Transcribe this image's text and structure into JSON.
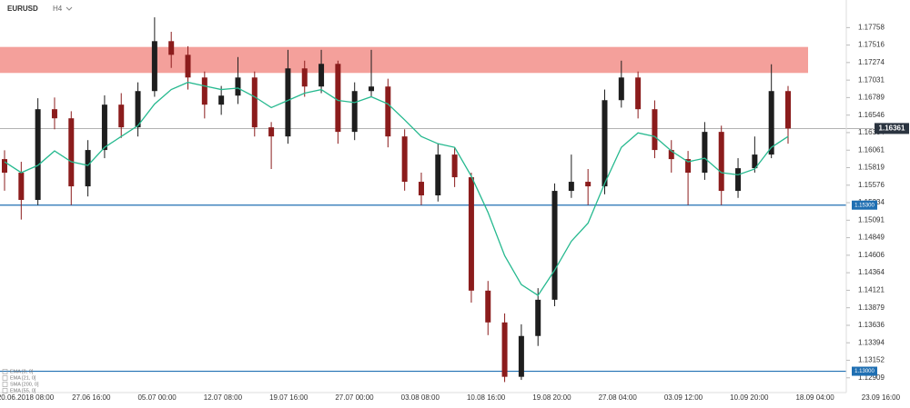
{
  "chart_data": {
    "type": "candlestick",
    "symbol": "EURUSD",
    "timeframe": "H4",
    "ylim": [
      1.1273,
      1.1814
    ],
    "yticks": [
      1.17758,
      1.17516,
      1.17274,
      1.17031,
      1.16789,
      1.16546,
      1.16304,
      1.16061,
      1.15819,
      1.15576,
      1.15334,
      1.15091,
      1.14849,
      1.14606,
      1.14364,
      1.14121,
      1.13879,
      1.13636,
      1.13394,
      1.13152,
      1.12909
    ],
    "xlabels": [
      "20.06.2018 08:00",
      "27.06 16:00",
      "05.07 00:00",
      "12.07 08:00",
      "19.07 16:00",
      "27.07 00:00",
      "03.08 08:00",
      "10.08 16:00",
      "19.08 20:00",
      "27.08 04:00",
      "03.09 12:00",
      "10.09 20:00",
      "18.09 04:00",
      "23.09 16:00"
    ],
    "up_color": "#1e1e1e",
    "down_color": "#8b1c1c",
    "open": [
      1.15937,
      1.15749,
      1.15372,
      1.16628,
      1.16502,
      1.1556,
      1.16063,
      1.16691,
      1.16377,
      1.16879,
      1.1757,
      1.17381,
      1.17067,
      1.16691,
      1.16816,
      1.17067,
      1.16377,
      1.16251,
      1.17193,
      1.16942,
      1.17256,
      1.16314,
      1.16879,
      1.16942,
      1.16251,
      1.15623,
      1.15435,
      1.16,
      1.15686,
      1.14116,
      1.13676,
      1.12923,
      1.13488,
      1.1399,
      1.15497,
      1.15623,
      1.1556,
      1.16753,
      1.17067,
      1.16628,
      1.16063,
      1.15937,
      1.15749,
      1.16314,
      1.15497,
      1.15811,
      1.16,
      1.16879
    ],
    "high": [
      1.1606,
      1.159,
      1.1678,
      1.1679,
      1.166,
      1.162,
      1.1682,
      1.1685,
      1.17,
      1.179,
      1.177,
      1.175,
      1.1715,
      1.1695,
      1.1735,
      1.1715,
      1.1645,
      1.1745,
      1.173,
      1.1745,
      1.173,
      1.17,
      1.1745,
      1.1705,
      1.1635,
      1.1575,
      1.1615,
      1.161,
      1.1575,
      1.1425,
      1.138,
      1.1365,
      1.1415,
      1.156,
      1.16,
      1.158,
      1.169,
      1.173,
      1.1715,
      1.1675,
      1.162,
      1.1605,
      1.1645,
      1.164,
      1.1595,
      1.1625,
      1.1725,
      1.1695
    ],
    "low": [
      1.155,
      1.151,
      1.153,
      1.1635,
      1.153,
      1.1542,
      1.1595,
      1.1623,
      1.1625,
      1.168,
      1.172,
      1.169,
      1.165,
      1.1655,
      1.167,
      1.1625,
      1.158,
      1.1615,
      1.168,
      1.1685,
      1.1615,
      1.162,
      1.168,
      1.161,
      1.155,
      1.153,
      1.1535,
      1.1555,
      1.1395,
      1.135,
      1.1285,
      1.1288,
      1.1335,
      1.139,
      1.154,
      1.153,
      1.1545,
      1.1665,
      1.165,
      1.1595,
      1.1575,
      1.153,
      1.1565,
      1.153,
      1.154,
      1.1575,
      1.1595,
      1.1615
    ],
    "close": [
      1.15749,
      1.15372,
      1.16628,
      1.16502,
      1.1556,
      1.16063,
      1.16691,
      1.16377,
      1.16879,
      1.1757,
      1.17381,
      1.17067,
      1.16691,
      1.16816,
      1.17067,
      1.16377,
      1.16251,
      1.17193,
      1.16942,
      1.17256,
      1.16314,
      1.16879,
      1.16942,
      1.16251,
      1.15623,
      1.15435,
      1.16,
      1.15686,
      1.14116,
      1.13676,
      1.12923,
      1.13488,
      1.1399,
      1.15497,
      1.15623,
      1.1556,
      1.16753,
      1.17067,
      1.16628,
      1.16063,
      1.15937,
      1.15749,
      1.16314,
      1.15497,
      1.15811,
      1.16,
      1.16879,
      1.16361
    ],
    "ema_color": "#26b98f",
    "ema": [
      1.159,
      1.1575,
      1.1585,
      1.1605,
      1.159,
      1.1585,
      1.161,
      1.1625,
      1.164,
      1.167,
      1.169,
      1.17,
      1.1695,
      1.169,
      1.1692,
      1.168,
      1.1665,
      1.1675,
      1.1685,
      1.169,
      1.1675,
      1.1672,
      1.168,
      1.167,
      1.1648,
      1.1625,
      1.1615,
      1.161,
      1.157,
      1.152,
      1.146,
      1.142,
      1.1405,
      1.144,
      1.148,
      1.1505,
      1.156,
      1.161,
      1.163,
      1.1625,
      1.1605,
      1.159,
      1.1595,
      1.1575,
      1.1572,
      1.158,
      1.161,
      1.1625
    ],
    "zone": [
      1.1713,
      1.1749
    ],
    "zone_color": "#f4a09b",
    "levels": [
      {
        "value": 1.153,
        "label": "1.15300"
      },
      {
        "value": 1.13,
        "label": "1.13000"
      }
    ],
    "level_color": "#1f6fb2",
    "current_price": 1.16361,
    "indicators": [
      "EMA [8, 0]",
      "EMA [21, 0]",
      "SMA [200, 0]",
      "EMA [55, 0]"
    ]
  }
}
